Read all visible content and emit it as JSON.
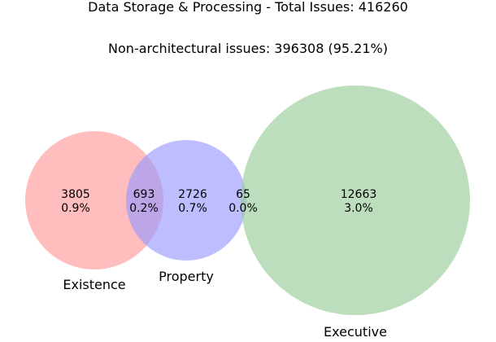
{
  "chart_data": {
    "type": "venn",
    "title": "Data Storage & Processing - Total Issues: 416260",
    "subtitle": "Non-architectural issues: 396308 (95.21%)",
    "sets": [
      {
        "name": "Existence",
        "color": "#ff9999"
      },
      {
        "name": "Property",
        "color": "#9999ff"
      },
      {
        "name": "Executive",
        "color": "#99cc99"
      }
    ],
    "regions": [
      {
        "sets": [
          "Existence"
        ],
        "count": "3805",
        "percent": "0.9%"
      },
      {
        "sets": [
          "Existence",
          "Property"
        ],
        "count": "693",
        "percent": "0.2%"
      },
      {
        "sets": [
          "Property"
        ],
        "count": "2726",
        "percent": "0.7%"
      },
      {
        "sets": [
          "Property",
          "Executive"
        ],
        "count": "65",
        "percent": "0.0%"
      },
      {
        "sets": [
          "Executive"
        ],
        "count": "12663",
        "percent": "3.0%"
      }
    ]
  }
}
